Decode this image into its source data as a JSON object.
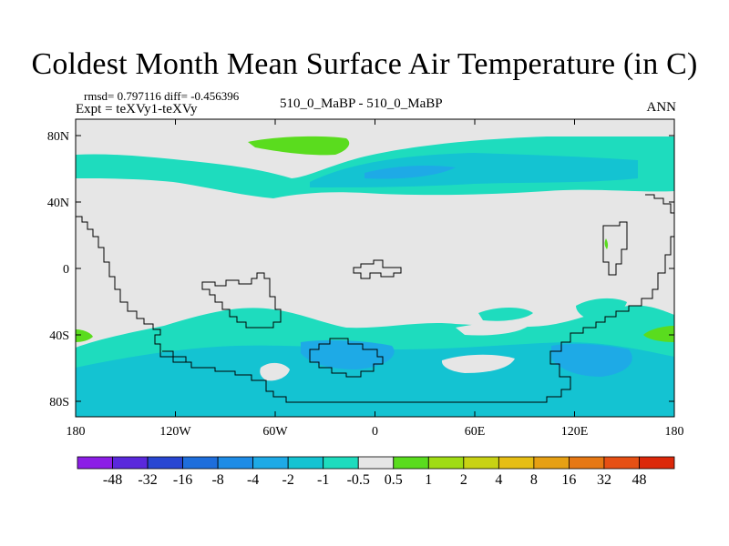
{
  "title": "Coldest Month Mean Surface Air Temperature (in C)",
  "stats": {
    "text": "rmsd= 0.797116 diff= -0.456396"
  },
  "experiment": {
    "text": "Expt = teXVy1-teXVy"
  },
  "comparison": {
    "text": "510_0_MaBP - 510_0_MaBP"
  },
  "season": {
    "text": "ANN"
  },
  "axes": {
    "lat_ticks": [
      "80N",
      "40N",
      "0",
      "40S",
      "80S"
    ],
    "lon_ticks": [
      "180",
      "120W",
      "60W",
      "0",
      "60E",
      "120E",
      "180"
    ]
  },
  "colorbar": {
    "labels": [
      "-48",
      "-32",
      "-16",
      "-8",
      "-4",
      "-2",
      "-1",
      "-0.5",
      "0.5",
      "1",
      "2",
      "4",
      "8",
      "16",
      "32",
      "48"
    ],
    "colors": [
      "#8c1ee6",
      "#5a28dc",
      "#2846d2",
      "#1e6edc",
      "#1e8ce6",
      "#1eaae6",
      "#14c3d2",
      "#1edcbe",
      "#e6e6e6",
      "#5adc1e",
      "#a0dc14",
      "#c8d214",
      "#e6be14",
      "#e6a014",
      "#e67814",
      "#e65014",
      "#dc280a"
    ]
  },
  "colors": {
    "background": "#e6e6e6",
    "band_a": "#1edcbe",
    "band_b": "#14c3d2",
    "band_c": "#1eaae6",
    "positive": "#5adc1e",
    "coast": "#000000"
  }
}
